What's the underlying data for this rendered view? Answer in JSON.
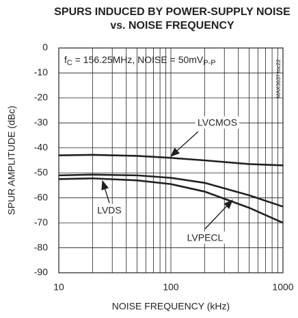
{
  "chart_data": {
    "type": "line",
    "title": [
      "SPURS INDUCED BY POWER-SUPPLY NOISE",
      "vs. NOISE FREQUENCY"
    ],
    "annotation": [
      "f",
      "C",
      " = 156.25MHz, NOISE = 50mV",
      "P-P"
    ],
    "side_note": "MAX3637 toc22",
    "x_label": "NOISE FREQUENCY (kHz)",
    "y_label": "SPUR AMPLITUDE (dBc)",
    "x": [
      10,
      20,
      50,
      100,
      200,
      500,
      1000
    ],
    "series": [
      {
        "name": "LVCMOS",
        "color": "#231f20",
        "values": [
          -43,
          -42.8,
          -43.2,
          -44,
          -45,
          -46.5,
          -47
        ]
      },
      {
        "name": "LVDS",
        "color": "#231f20",
        "values": [
          -51,
          -50.7,
          -51,
          -52,
          -54,
          -59,
          -63.5
        ]
      },
      {
        "name": "LVPECL",
        "color": "#231f20",
        "values": [
          -52.5,
          -52.2,
          -53,
          -54.5,
          -57.5,
          -64,
          -70
        ]
      }
    ],
    "log_x": true,
    "xlim": [
      10,
      1000
    ],
    "xticks": [
      10,
      100,
      1000
    ],
    "xminorticks": [
      20,
      30,
      40,
      50,
      60,
      70,
      80,
      90,
      200,
      300,
      400,
      500,
      600,
      700,
      800,
      900
    ],
    "ylim": [
      -90,
      0
    ],
    "yticks": [
      0,
      -10,
      -20,
      -30,
      -40,
      -50,
      -60,
      -70,
      -80,
      -90
    ],
    "grid": true
  }
}
